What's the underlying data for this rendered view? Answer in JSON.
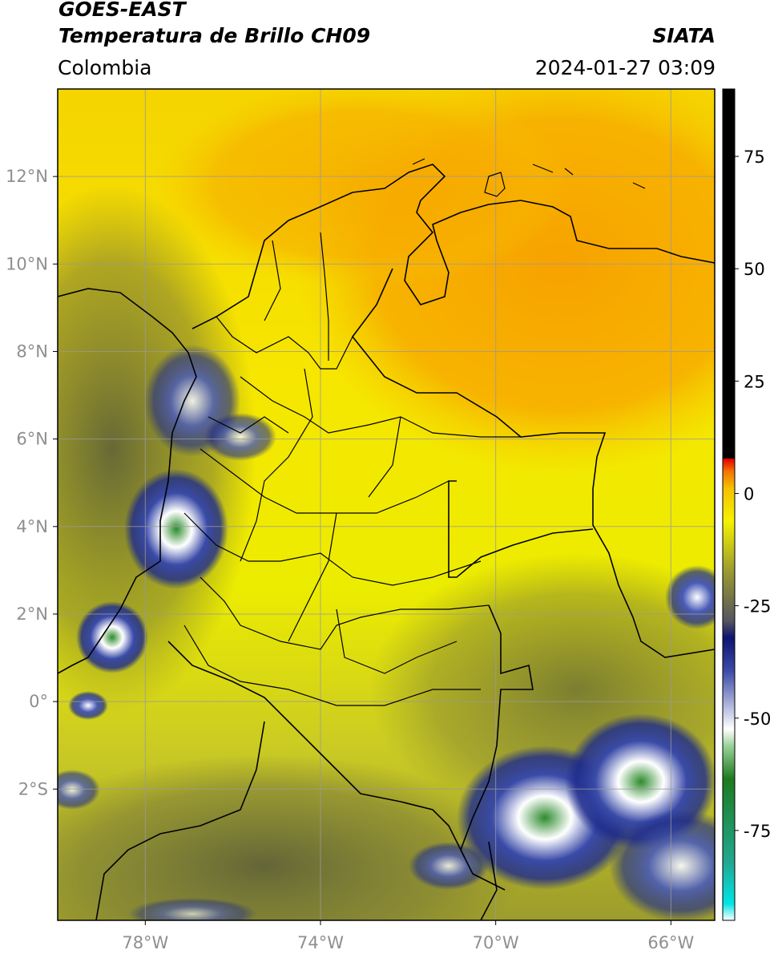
{
  "header": {
    "satellite": "GOES-EAST",
    "product": "Temperatura de Brillo CH09",
    "region": "Colombia",
    "organization": "SIATA",
    "datetime": "2024-01-27 03:09"
  },
  "map": {
    "lon_range": [
      -80,
      -65
    ],
    "lat_range": [
      -5,
      14
    ],
    "lat_labels": [
      {
        "lat": 12,
        "text": "12°N"
      },
      {
        "lat": 10,
        "text": "10°N"
      },
      {
        "lat": 8,
        "text": "8°N"
      },
      {
        "lat": 6,
        "text": "6°N"
      },
      {
        "lat": 4,
        "text": "4°N"
      },
      {
        "lat": 2,
        "text": "2°N"
      },
      {
        "lat": 0,
        "text": "0°"
      },
      {
        "lat": -2,
        "text": "2°S"
      }
    ],
    "lon_labels": [
      {
        "lon": -78,
        "text": "78°W"
      },
      {
        "lon": -74,
        "text": "74°W"
      },
      {
        "lon": -70,
        "text": "70°W"
      },
      {
        "lon": -66,
        "text": "66°W"
      }
    ],
    "colors": {
      "warm_cloudfree": "#f7a600",
      "mid": "#f4f200",
      "olive": "#7a7a2e",
      "cold_blue": "#1d2a8a",
      "very_cold": "#ffffff",
      "coldest_green": "#2e8b2e"
    }
  },
  "colorbar": {
    "range": [
      -95,
      90
    ],
    "tick_labels": [
      {
        "value": 75,
        "text": "75"
      },
      {
        "value": 50,
        "text": "50"
      },
      {
        "value": 25,
        "text": "25"
      },
      {
        "value": 0,
        "text": "0"
      },
      {
        "value": -25,
        "text": "-25"
      },
      {
        "value": -50,
        "text": "-50"
      },
      {
        "value": -75,
        "text": "-75"
      }
    ]
  }
}
